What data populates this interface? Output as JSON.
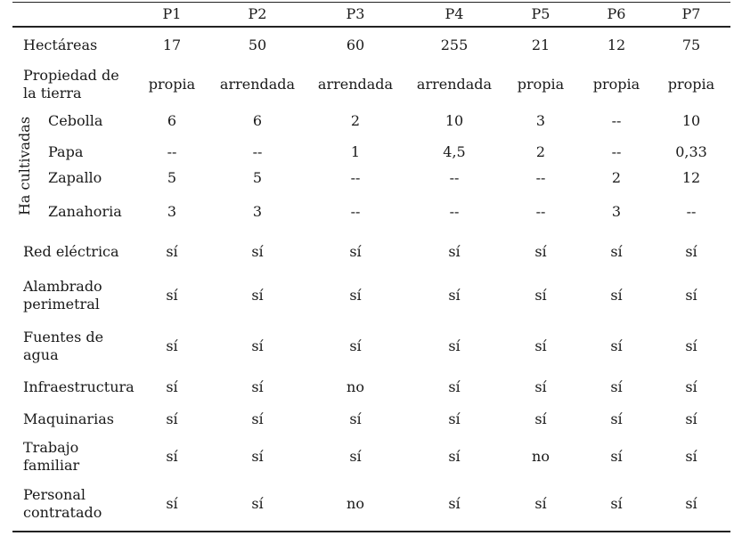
{
  "table": {
    "columns": [
      "P1",
      "P2",
      "P3",
      "P4",
      "P5",
      "P6",
      "P7"
    ],
    "group_label": "Ha cultivadas",
    "rows": [
      {
        "label": "Hectáreas",
        "values": [
          "17",
          "50",
          "60",
          "255",
          "21",
          "12",
          "75"
        ]
      },
      {
        "label": "Propiedad de\nla tierra",
        "values": [
          "propia",
          "arrendada",
          "arrendada",
          "arrendada",
          "propia",
          "propia",
          "propia"
        ]
      },
      {
        "label": "Cebolla",
        "values": [
          "6",
          "6",
          "2",
          "10",
          "3",
          "--",
          "10"
        ]
      },
      {
        "label": "Papa",
        "values": [
          "--",
          "--",
          "1",
          "4,5",
          "2",
          "--",
          "0,33"
        ]
      },
      {
        "label": "Zapallo",
        "values": [
          "5",
          "5",
          "--",
          "--",
          "--",
          "2",
          "12"
        ]
      },
      {
        "label": "Zanahoria",
        "values": [
          "3",
          "3",
          "--",
          "--",
          "--",
          "3",
          "--"
        ]
      },
      {
        "label": "Red eléctrica",
        "values": [
          "sí",
          "sí",
          "sí",
          "sí",
          "sí",
          "sí",
          "sí"
        ]
      },
      {
        "label": "Alambrado\nperimetral",
        "values": [
          "sí",
          "sí",
          "sí",
          "sí",
          "sí",
          "sí",
          "sí"
        ]
      },
      {
        "label": "Fuentes de\nagua",
        "values": [
          "sí",
          "sí",
          "sí",
          "sí",
          "sí",
          "sí",
          "sí"
        ]
      },
      {
        "label": "Infraestructura",
        "values": [
          "sí",
          "sí",
          "no",
          "sí",
          "sí",
          "sí",
          "sí"
        ]
      },
      {
        "label": "Maquinarias",
        "values": [
          "sí",
          "sí",
          "sí",
          "sí",
          "sí",
          "sí",
          "sí"
        ]
      },
      {
        "label": "Trabajo\nfamiliar",
        "values": [
          "sí",
          "sí",
          "sí",
          "sí",
          "no",
          "sí",
          "sí"
        ]
      },
      {
        "label": "Personal\ncontratado",
        "values": [
          "sí",
          "sí",
          "no",
          "sí",
          "sí",
          "sí",
          "sí"
        ]
      }
    ]
  }
}
